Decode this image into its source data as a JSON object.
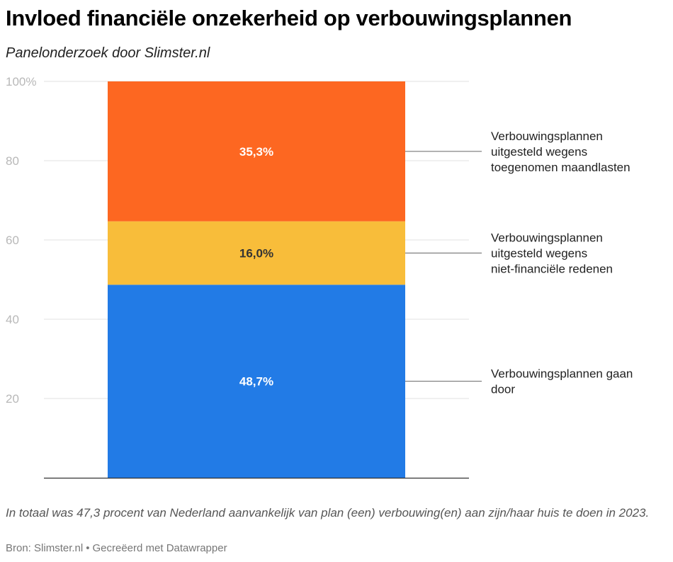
{
  "header": {
    "title": "Invloed financiële onzekerheid op verbouwingsplannen",
    "subtitle": "Panelonderzoek door Slimster.nl"
  },
  "footer": {
    "notes": "In totaal was 47,3 procent van Nederland aanvankelijk van plan (een) verbouwing(en) aan zijn/haar huis te doen in 2023.",
    "source_label": "Bron:",
    "source_name": "Slimster.nl",
    "separator": "•",
    "credit": "Gecreëerd met Datawrapper"
  },
  "chart_data": {
    "type": "bar",
    "stacked": true,
    "title": "Invloed financiële onzekerheid op verbouwingsplannen",
    "subtitle": "Panelonderzoek door Slimster.nl",
    "categories": [
      ""
    ],
    "ylim": [
      0,
      100
    ],
    "yticks": [
      20,
      40,
      60,
      80,
      100
    ],
    "ytick_labels": [
      "20",
      "40",
      "60",
      "80",
      "100%"
    ],
    "grid": true,
    "legend_placement": "right (direct labels)",
    "series": [
      {
        "name": "Verbouwingsplannen gaan door",
        "values": [
          48.7
        ],
        "label": "48,7%",
        "color": "#227be6",
        "label_color": "#ffffff"
      },
      {
        "name": "Verbouwingsplannen uitgesteld wegens niet-financiële redenen",
        "values": [
          16.0
        ],
        "label": "16,0%",
        "color": "#f8bd3a",
        "label_color": "#333333"
      },
      {
        "name": "Verbouwingsplannen uitgesteld wegens toegenomen maandlasten",
        "values": [
          35.3
        ],
        "label": "35,3%",
        "color": "#fd6721",
        "label_color": "#ffffff"
      }
    ]
  }
}
